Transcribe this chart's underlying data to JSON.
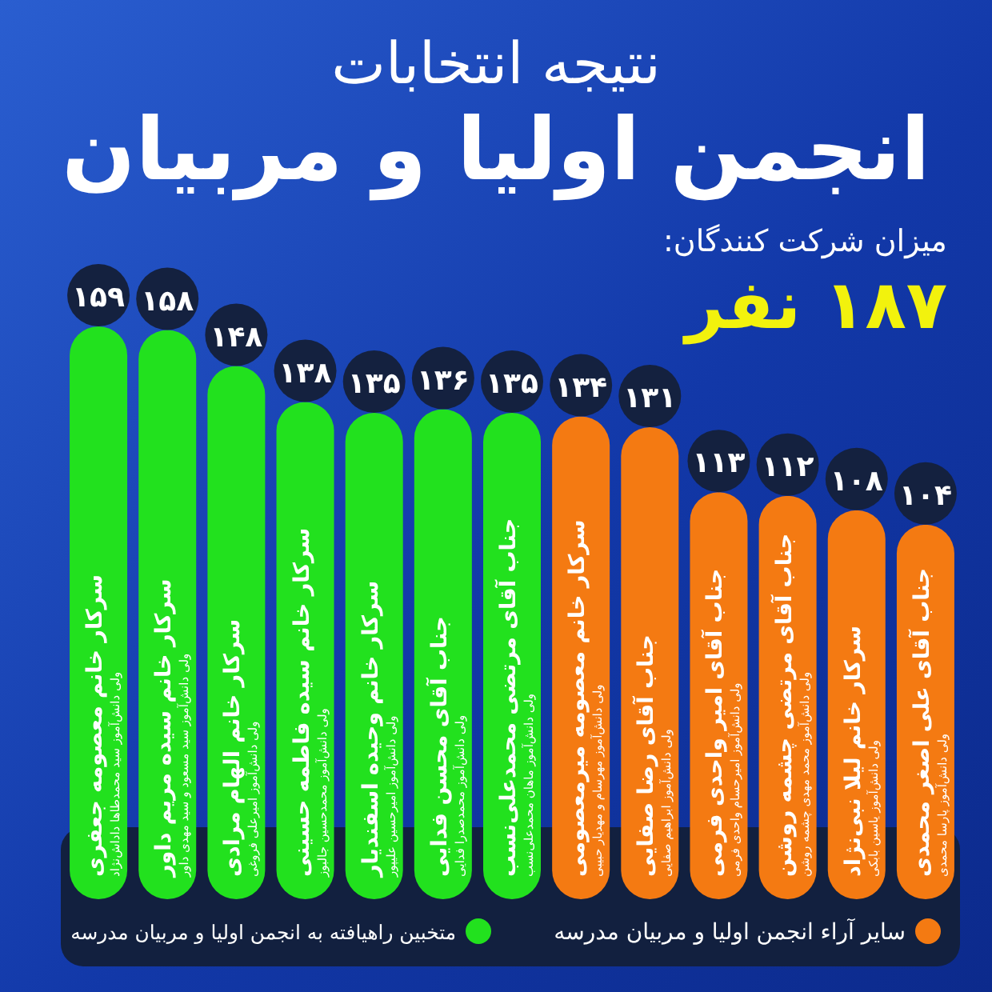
{
  "chart_data": {
    "type": "bar",
    "title": "نتیجه انتخابات",
    "subtitle": "انجمن اولیا و مربیان",
    "categories": [
      "سرکار خانم معصومه جعفری\nولی دانش‌آموز سید محمدطاها داداش‌نژاد",
      "سرکار خانم سیده مریم داور\nولی دانش‌آموز سید مسعود و سید مهدی داور",
      "سرکار خانم الهام مرادی\nولی دانش‌آموز امیرعلی فروغی",
      "سرکار خانم سیده فاطمه حسینی\nولی دانش‌آموز محمدحسین جالبوز",
      "سرکار خانم وحیده اسفندیار\nولی دانش‌آموز امیرحسین علیپور",
      "جناب آقای محسن فدایی\nولی دانش‌آموز محمدصدرا فدایی",
      "جناب آقای مرتضی محمدعلی‌نسب\nولی دانش‌آموز ماهان محمدعلی‌نسب",
      "سرکار خانم معصومه میرمعصومی\nولی دانش‌آموز مهرسام و مهدیار حبیبی",
      "جناب آقای رضا صفایی\nولی دانش‌آموز ابراهیم صفایی",
      "جناب آقای امیر واحدی فرمی\nولی دانش‌آموز امیرحسام واحدی فرمی",
      "جناب آقای مرتضی چشمه روشن\nولی دانش‌آموز محمد مهدی چشمه روشن",
      "سرکار خانم لیلا نبی‌نژاد\nولی دانش‌آموز یاسین بابکی",
      "جناب آقای علی اصغر محمدی\nولی دانش‌آموز پارسا محمدی"
    ],
    "series": [
      {
        "name": "متخبین راهیافته به انجمن اولیا و مربیان مدرسه",
        "color": "#22e11e",
        "values": [
          159,
          158,
          148,
          138,
          135,
          136,
          135,
          null,
          null,
          null,
          null,
          null,
          null
        ],
        "value_labels": [
          "۱۵۹",
          "۱۵۸",
          "۱۴۸",
          "۱۳۸",
          "۱۳۵",
          "۱۳۶",
          "۱۳۵",
          null,
          null,
          null,
          null,
          null,
          null
        ]
      },
      {
        "name": "سایر آراء انجمن اولیا و مربیان مدرسه",
        "color": "#f47a12",
        "values": [
          null,
          null,
          null,
          null,
          null,
          null,
          null,
          134,
          131,
          113,
          112,
          108,
          104
        ],
        "value_labels": [
          null,
          null,
          null,
          null,
          null,
          null,
          null,
          "۱۳۴",
          "۱۳۱",
          "۱۱۳",
          "۱۱۲",
          "۱۰۸",
          "۱۰۴"
        ]
      }
    ],
    "stacked": true,
    "legend": "bottom",
    "annotations": [
      "میزان شرکت کنندگان:",
      "۱۸۷ نفر"
    ]
  }
}
